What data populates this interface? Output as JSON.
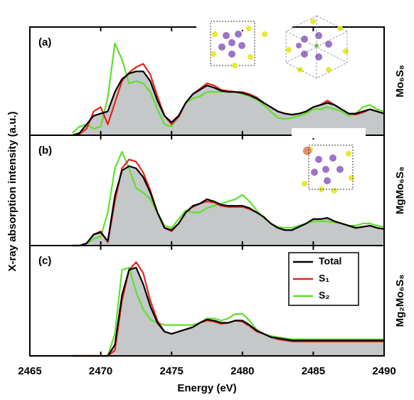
{
  "chart_data": [
    {
      "type": "line",
      "panel_label": "(a)",
      "side_label": "Mo₆S₈",
      "ylabel": "X-ray absorption intensity (a.u.)",
      "xlim": [
        2465,
        2490
      ],
      "ylim": [
        0,
        1
      ],
      "x": [
        2468,
        2468.5,
        2469,
        2469.5,
        2470,
        2470.5,
        2471,
        2471.5,
        2472,
        2472.5,
        2473,
        2473.5,
        2474,
        2474.5,
        2475,
        2475.5,
        2476,
        2476.5,
        2477,
        2477.5,
        2478,
        2478.5,
        2479,
        2479.5,
        2480,
        2480.5,
        2481,
        2481.5,
        2482,
        2482.5,
        2483,
        2483.5,
        2484,
        2484.5,
        2485,
        2485.5,
        2486,
        2486.5,
        2487,
        2487.5,
        2488,
        2488.5,
        2489,
        2489.5,
        2490
      ],
      "series": [
        {
          "color": "#000000",
          "fill": "#c4c8c8",
          "values": [
            0,
            0.02,
            0.1,
            0.18,
            0.2,
            0.22,
            0.4,
            0.52,
            0.57,
            0.59,
            0.59,
            0.5,
            0.32,
            0.18,
            0.12,
            0.18,
            0.3,
            0.38,
            0.42,
            0.46,
            0.44,
            0.41,
            0.4,
            0.4,
            0.39,
            0.37,
            0.34,
            0.3,
            0.26,
            0.22,
            0.2,
            0.19,
            0.2,
            0.22,
            0.26,
            0.28,
            0.3,
            0.28,
            0.24,
            0.2,
            0.2,
            0.22,
            0.24,
            0.22,
            0.2
          ]
        },
        {
          "color": "#e8231f",
          "values": [
            0,
            0.01,
            0.06,
            0.22,
            0.26,
            0.1,
            0.3,
            0.5,
            0.58,
            0.63,
            0.66,
            0.56,
            0.36,
            0.18,
            0.1,
            0.17,
            0.3,
            0.38,
            0.43,
            0.48,
            0.46,
            0.42,
            0.41,
            0.4,
            0.4,
            0.38,
            0.35,
            0.3,
            0.26,
            0.22,
            0.2,
            0.19,
            0.2,
            0.22,
            0.26,
            0.28,
            0.32,
            0.28,
            0.24,
            0.2,
            0.19,
            0.21,
            0.24,
            0.22,
            0.2
          ]
        },
        {
          "color": "#5ee02a",
          "values": [
            0.02,
            0.08,
            0.1,
            0.06,
            0.08,
            0.35,
            0.85,
            0.7,
            0.48,
            0.5,
            0.48,
            0.4,
            0.24,
            0.1,
            0.08,
            0.18,
            0.3,
            0.34,
            0.36,
            0.4,
            0.4,
            0.4,
            0.41,
            0.4,
            0.38,
            0.36,
            0.33,
            0.28,
            0.22,
            0.16,
            0.15,
            0.16,
            0.18,
            0.2,
            0.24,
            0.24,
            0.26,
            0.24,
            0.22,
            0.18,
            0.2,
            0.26,
            0.28,
            0.24,
            0.22
          ]
        }
      ]
    },
    {
      "type": "line",
      "panel_label": "(b)",
      "side_label": "MgMo₆S₈",
      "xlim": [
        2465,
        2490
      ],
      "ylim": [
        0,
        1
      ],
      "x": [
        2468,
        2468.5,
        2469,
        2469.5,
        2470,
        2470.5,
        2471,
        2471.5,
        2472,
        2472.5,
        2473,
        2473.5,
        2474,
        2474.5,
        2475,
        2475.5,
        2476,
        2476.5,
        2477,
        2477.5,
        2478,
        2478.5,
        2479,
        2479.5,
        2480,
        2480.5,
        2481,
        2481.5,
        2482,
        2482.5,
        2483,
        2483.5,
        2484,
        2484.5,
        2485,
        2485.5,
        2486,
        2486.5,
        2487,
        2487.5,
        2488,
        2488.5,
        2489,
        2489.5,
        2490
      ],
      "series": [
        {
          "color": "#000000",
          "fill": "#c4c8c8",
          "values": [
            0,
            0,
            0.02,
            0.1,
            0.12,
            0.04,
            0.45,
            0.68,
            0.72,
            0.7,
            0.62,
            0.48,
            0.3,
            0.16,
            0.14,
            0.2,
            0.3,
            0.36,
            0.38,
            0.42,
            0.4,
            0.37,
            0.36,
            0.36,
            0.36,
            0.34,
            0.3,
            0.26,
            0.2,
            0.16,
            0.14,
            0.14,
            0.17,
            0.2,
            0.24,
            0.24,
            0.25,
            0.22,
            0.2,
            0.18,
            0.16,
            0.17,
            0.18,
            0.16,
            0.15
          ]
        },
        {
          "color": "#e8231f",
          "values": [
            0,
            0,
            0.02,
            0.1,
            0.13,
            0.03,
            0.4,
            0.7,
            0.78,
            0.76,
            0.66,
            0.5,
            0.3,
            0.16,
            0.13,
            0.2,
            0.3,
            0.35,
            0.38,
            0.4,
            0.39,
            0.36,
            0.35,
            0.35,
            0.35,
            0.33,
            0.3,
            0.26,
            0.2,
            0.16,
            0.14,
            0.14,
            0.17,
            0.2,
            0.24,
            0.24,
            0.25,
            0.22,
            0.2,
            0.18,
            0.16,
            0.17,
            0.18,
            0.16,
            0.15
          ]
        },
        {
          "color": "#5ee02a",
          "values": [
            0,
            0,
            0.02,
            0.06,
            0.08,
            0.3,
            0.7,
            0.85,
            0.7,
            0.52,
            0.48,
            0.42,
            0.3,
            0.18,
            0.16,
            0.24,
            0.32,
            0.3,
            0.3,
            0.34,
            0.36,
            0.38,
            0.4,
            0.42,
            0.46,
            0.4,
            0.32,
            0.25,
            0.2,
            0.17,
            0.16,
            0.16,
            0.18,
            0.2,
            0.22,
            0.22,
            0.22,
            0.21,
            0.2,
            0.18,
            0.18,
            0.2,
            0.2,
            0.18,
            0.17
          ]
        }
      ]
    },
    {
      "type": "line",
      "panel_label": "(c)",
      "side_label": "Mg₂Mo₆S₈",
      "xlabel": "Energy (eV)",
      "legend": "upper right",
      "xlim": [
        2465,
        2490
      ],
      "ylim": [
        0,
        1
      ],
      "xticks": [
        2465,
        2470,
        2475,
        2480,
        2485,
        2490
      ],
      "x": [
        2468,
        2468.5,
        2469,
        2469.5,
        2470,
        2470.5,
        2471,
        2471.5,
        2472,
        2472.5,
        2473,
        2473.5,
        2474,
        2474.5,
        2475,
        2475.5,
        2476,
        2476.5,
        2477,
        2477.5,
        2478,
        2478.5,
        2479,
        2479.5,
        2480,
        2480.5,
        2481,
        2481.5,
        2482,
        2482.5,
        2483,
        2483.5,
        2484,
        2484.5,
        2485,
        2485.5,
        2486,
        2486.5,
        2487,
        2487.5,
        2488,
        2488.5,
        2489,
        2489.5,
        2490
      ],
      "series": [
        {
          "name": "Total",
          "color": "#000000",
          "fill": "#c4c8c8",
          "values": [
            0,
            0,
            0,
            0,
            0,
            0,
            0.1,
            0.55,
            0.78,
            0.8,
            0.65,
            0.45,
            0.3,
            0.22,
            0.2,
            0.22,
            0.24,
            0.26,
            0.3,
            0.33,
            0.32,
            0.3,
            0.3,
            0.32,
            0.32,
            0.28,
            0.23,
            0.2,
            0.17,
            0.16,
            0.15,
            0.14,
            0.14,
            0.14,
            0.14,
            0.14,
            0.14,
            0.14,
            0.14,
            0.14,
            0.14,
            0.14,
            0.14,
            0.14,
            0.14
          ]
        },
        {
          "name": "S₁",
          "color": "#e8231f",
          "values": [
            0,
            0,
            0,
            0,
            0,
            0,
            0.05,
            0.5,
            0.78,
            0.85,
            0.75,
            0.5,
            0.32,
            0.22,
            0.2,
            0.22,
            0.24,
            0.26,
            0.3,
            0.32,
            0.31,
            0.29,
            0.3,
            0.32,
            0.31,
            0.27,
            0.22,
            0.2,
            0.17,
            0.15,
            0.14,
            0.13,
            0.13,
            0.13,
            0.13,
            0.13,
            0.13,
            0.13,
            0.13,
            0.13,
            0.13,
            0.13,
            0.13,
            0.13,
            0.13
          ]
        },
        {
          "name": "S₂",
          "color": "#5ee02a",
          "values": [
            0,
            0,
            0,
            0,
            0,
            0,
            0.2,
            0.78,
            0.8,
            0.58,
            0.42,
            0.33,
            0.3,
            0.28,
            0.28,
            0.28,
            0.28,
            0.28,
            0.3,
            0.34,
            0.34,
            0.32,
            0.34,
            0.38,
            0.38,
            0.32,
            0.24,
            0.2,
            0.18,
            0.17,
            0.16,
            0.15,
            0.15,
            0.15,
            0.15,
            0.15,
            0.15,
            0.15,
            0.15,
            0.15,
            0.15,
            0.15,
            0.15,
            0.15,
            0.15
          ]
        }
      ]
    }
  ]
}
